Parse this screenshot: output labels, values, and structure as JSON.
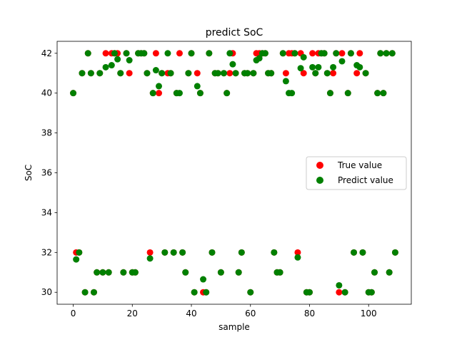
{
  "chart_data": {
    "type": "scatter",
    "title": "predict SoC",
    "xlabel": "sample",
    "ylabel": "SoC",
    "xlim": [
      -5.45,
      114.45
    ],
    "ylim": [
      29.4,
      42.6
    ],
    "xticks": [
      0,
      20,
      40,
      60,
      80,
      100
    ],
    "yticks": [
      30,
      32,
      34,
      36,
      38,
      40,
      42
    ],
    "legend_position": "center-right",
    "series": [
      {
        "name": "True value",
        "color": "#ff0000",
        "points": [
          [
            0,
            40
          ],
          [
            1,
            32
          ],
          [
            2,
            32
          ],
          [
            3,
            41
          ],
          [
            4,
            30
          ],
          [
            5,
            42
          ],
          [
            6,
            41
          ],
          [
            7,
            30
          ],
          [
            8,
            31
          ],
          [
            9,
            41
          ],
          [
            10,
            31
          ],
          [
            11,
            42
          ],
          [
            12,
            31
          ],
          [
            13,
            42
          ],
          [
            14,
            42
          ],
          [
            15,
            42
          ],
          [
            16,
            41
          ],
          [
            17,
            31
          ],
          [
            18,
            42
          ],
          [
            19,
            41
          ],
          [
            20,
            31
          ],
          [
            21,
            31
          ],
          [
            22,
            42
          ],
          [
            23,
            42
          ],
          [
            24,
            42
          ],
          [
            25,
            41
          ],
          [
            26,
            32
          ],
          [
            27,
            40
          ],
          [
            28,
            42
          ],
          [
            29,
            40
          ],
          [
            30,
            41
          ],
          [
            31,
            32
          ],
          [
            32,
            41
          ],
          [
            33,
            41
          ],
          [
            34,
            32
          ],
          [
            35,
            40
          ],
          [
            36,
            42
          ],
          [
            37,
            32
          ],
          [
            38,
            31
          ],
          [
            39,
            41
          ],
          [
            40,
            42
          ],
          [
            41,
            30
          ],
          [
            42,
            41
          ],
          [
            43,
            40
          ],
          [
            44,
            30
          ],
          [
            45,
            30
          ],
          [
            46,
            42
          ],
          [
            47,
            32
          ],
          [
            48,
            41
          ],
          [
            49,
            41
          ],
          [
            50,
            31
          ],
          [
            51,
            41
          ],
          [
            52,
            40
          ],
          [
            53,
            41
          ],
          [
            54,
            42
          ],
          [
            55,
            41
          ],
          [
            56,
            31
          ],
          [
            57,
            32
          ],
          [
            58,
            41
          ],
          [
            59,
            41
          ],
          [
            60,
            30
          ],
          [
            61,
            41
          ],
          [
            62,
            42
          ],
          [
            63,
            42
          ],
          [
            64,
            42
          ],
          [
            65,
            42
          ],
          [
            66,
            41
          ],
          [
            67,
            41
          ],
          [
            68,
            32
          ],
          [
            69,
            31
          ],
          [
            70,
            31
          ],
          [
            71,
            42
          ],
          [
            72,
            41
          ],
          [
            73,
            42
          ],
          [
            74,
            42
          ],
          [
            75,
            42
          ],
          [
            76,
            32
          ],
          [
            77,
            42
          ],
          [
            78,
            41
          ],
          [
            79,
            30
          ],
          [
            80,
            30
          ],
          [
            81,
            42
          ],
          [
            82,
            41
          ],
          [
            83,
            42
          ],
          [
            84,
            42
          ],
          [
            85,
            42
          ],
          [
            86,
            41
          ],
          [
            87,
            40
          ],
          [
            88,
            41
          ],
          [
            89,
            42
          ],
          [
            90,
            30
          ],
          [
            91,
            42
          ],
          [
            92,
            30
          ],
          [
            93,
            40
          ],
          [
            94,
            42
          ],
          [
            95,
            32
          ],
          [
            96,
            41
          ],
          [
            97,
            42
          ],
          [
            98,
            32
          ],
          [
            99,
            41
          ],
          [
            100,
            30
          ],
          [
            101,
            30
          ],
          [
            102,
            31
          ],
          [
            103,
            40
          ],
          [
            104,
            42
          ],
          [
            105,
            40
          ],
          [
            106,
            42
          ],
          [
            107,
            31
          ],
          [
            108,
            42
          ],
          [
            109,
            32
          ]
        ]
      },
      {
        "name": "Predict value",
        "color": "#008000",
        "points": [
          [
            0,
            40
          ],
          [
            1,
            31.65
          ],
          [
            2,
            32
          ],
          [
            3,
            41
          ],
          [
            4,
            30
          ],
          [
            5,
            42
          ],
          [
            6,
            41
          ],
          [
            7,
            30
          ],
          [
            8,
            31
          ],
          [
            9,
            41
          ],
          [
            10,
            31
          ],
          [
            11,
            41.3
          ],
          [
            12,
            31
          ],
          [
            13,
            41.4
          ],
          [
            14,
            42
          ],
          [
            15,
            41.7
          ],
          [
            16,
            41
          ],
          [
            17,
            31
          ],
          [
            18,
            42
          ],
          [
            19,
            41.65
          ],
          [
            20,
            31
          ],
          [
            21,
            31
          ],
          [
            22,
            42
          ],
          [
            23,
            42
          ],
          [
            24,
            42
          ],
          [
            25,
            41
          ],
          [
            26,
            31.7
          ],
          [
            27,
            40
          ],
          [
            28,
            41.15
          ],
          [
            29,
            40.35
          ],
          [
            30,
            41
          ],
          [
            31,
            32
          ],
          [
            32,
            42
          ],
          [
            33,
            41
          ],
          [
            34,
            32
          ],
          [
            35,
            40
          ],
          [
            36,
            40
          ],
          [
            37,
            32
          ],
          [
            38,
            31
          ],
          [
            39,
            41
          ],
          [
            40,
            42
          ],
          [
            41,
            30
          ],
          [
            42,
            40.35
          ],
          [
            43,
            40
          ],
          [
            44,
            30.65
          ],
          [
            45,
            30
          ],
          [
            46,
            42
          ],
          [
            47,
            32
          ],
          [
            48,
            41
          ],
          [
            49,
            41
          ],
          [
            50,
            31
          ],
          [
            51,
            41
          ],
          [
            52,
            40
          ],
          [
            53,
            42
          ],
          [
            54,
            41.45
          ],
          [
            55,
            41
          ],
          [
            56,
            31
          ],
          [
            57,
            32
          ],
          [
            58,
            41
          ],
          [
            59,
            41
          ],
          [
            60,
            30
          ],
          [
            61,
            41
          ],
          [
            62,
            41.65
          ],
          [
            63,
            41.75
          ],
          [
            64,
            42
          ],
          [
            65,
            42
          ],
          [
            66,
            41
          ],
          [
            67,
            41
          ],
          [
            68,
            32
          ],
          [
            69,
            31
          ],
          [
            70,
            31
          ],
          [
            71,
            42
          ],
          [
            72,
            40.6
          ],
          [
            73,
            40
          ],
          [
            74,
            40
          ],
          [
            75,
            42
          ],
          [
            76,
            31.75
          ],
          [
            77,
            41.25
          ],
          [
            78,
            41.8
          ],
          [
            79,
            30
          ],
          [
            80,
            30
          ],
          [
            81,
            41.3
          ],
          [
            82,
            41
          ],
          [
            83,
            41.3
          ],
          [
            84,
            42
          ],
          [
            85,
            42
          ],
          [
            86,
            41
          ],
          [
            87,
            40
          ],
          [
            88,
            41.3
          ],
          [
            89,
            42
          ],
          [
            90,
            30.35
          ],
          [
            91,
            41.6
          ],
          [
            92,
            30
          ],
          [
            93,
            40
          ],
          [
            94,
            42
          ],
          [
            95,
            32
          ],
          [
            96,
            41.4
          ],
          [
            97,
            41.3
          ],
          [
            98,
            32
          ],
          [
            99,
            41
          ],
          [
            100,
            30
          ],
          [
            101,
            30
          ],
          [
            102,
            31
          ],
          [
            103,
            40
          ],
          [
            104,
            42
          ],
          [
            105,
            40
          ],
          [
            106,
            42
          ],
          [
            107,
            31
          ],
          [
            108,
            42
          ],
          [
            109,
            32
          ]
        ]
      }
    ]
  }
}
